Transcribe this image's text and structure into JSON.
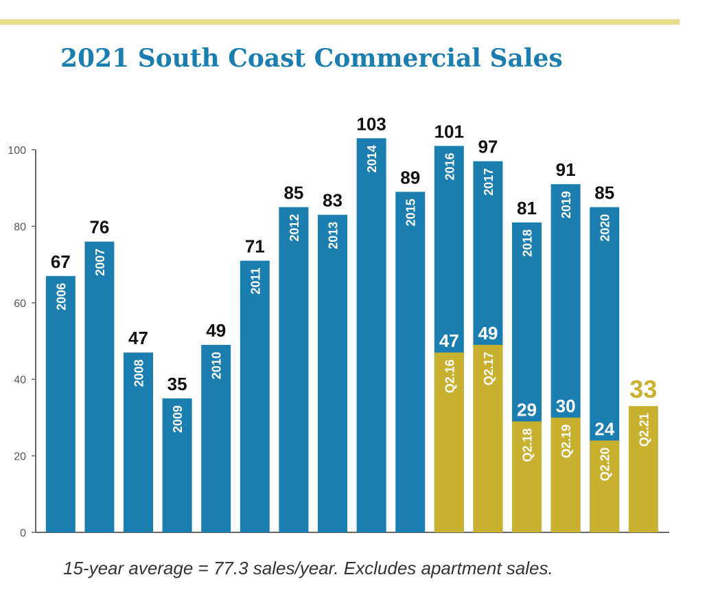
{
  "title": "2021 South Coast Commercial Sales",
  "footnote": "15-year average = 77.3 sales/year.  Excludes apartment sales.",
  "chart_data": {
    "type": "bar",
    "title": "2021 South Coast Commercial Sales",
    "ylim": [
      0,
      100
    ],
    "y_ticks": [
      0,
      20,
      40,
      60,
      80,
      100
    ],
    "grid": false,
    "colors": {
      "annual": "#1b7eb0",
      "quarter": "#c8b12f",
      "axis": "#666666",
      "quarter_label": "#c8b12f"
    },
    "series": [
      {
        "values": [
          67,
          76,
          47,
          35,
          49,
          71,
          85,
          83,
          103,
          89,
          101,
          97,
          81,
          91,
          85
        ],
        "labels": [
          "2006",
          "2007",
          "2008",
          "2009",
          "2010",
          "2011",
          "2012",
          "2013",
          "2014",
          "2015",
          "2016",
          "2017",
          "2018",
          "2019",
          "2020"
        ]
      },
      {
        "values": [
          47,
          49,
          29,
          30,
          24,
          33
        ],
        "labels": [
          "Q2.16",
          "Q2.17",
          "Q2.18",
          "Q2.19",
          "Q2.20",
          "Q2.21"
        ]
      }
    ]
  }
}
